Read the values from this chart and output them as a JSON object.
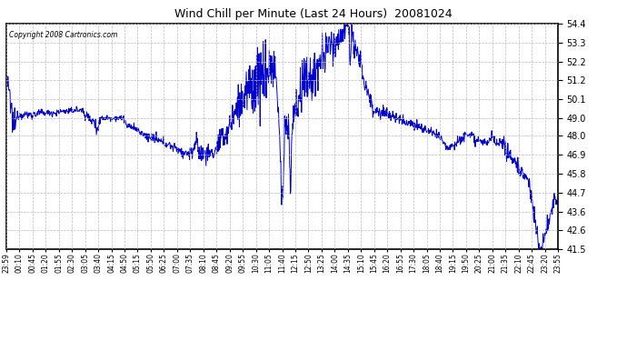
{
  "title": "Wind Chill per Minute (Last 24 Hours)  20081024",
  "copyright": "Copyright 2008 Cartronics.com",
  "line_color": "#0000cc",
  "bg_color": "#ffffff",
  "grid_color": "#bbbbbb",
  "yticks": [
    41.5,
    42.6,
    43.6,
    44.7,
    45.8,
    46.9,
    48.0,
    49.0,
    50.1,
    51.2,
    52.2,
    53.3,
    54.4
  ],
  "ylim": [
    41.5,
    54.4
  ],
  "xtick_labels": [
    "23:59",
    "00:10",
    "00:45",
    "01:20",
    "01:55",
    "02:30",
    "03:05",
    "03:40",
    "04:15",
    "04:50",
    "05:15",
    "05:50",
    "06:25",
    "07:00",
    "07:35",
    "08:10",
    "08:45",
    "09:20",
    "09:55",
    "10:30",
    "11:05",
    "11:40",
    "12:15",
    "12:50",
    "13:25",
    "14:00",
    "14:35",
    "15:10",
    "15:45",
    "16:20",
    "16:55",
    "17:30",
    "18:05",
    "18:40",
    "19:15",
    "19:50",
    "20:25",
    "21:00",
    "21:35",
    "22:10",
    "22:45",
    "23:20",
    "23:55"
  ]
}
